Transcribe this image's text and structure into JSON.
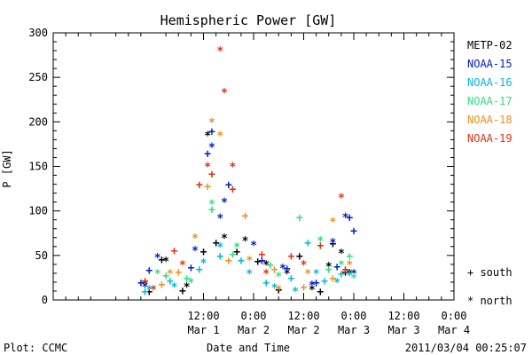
{
  "chart_data": {
    "type": "scatter",
    "title": "Hemispheric Power [GW]",
    "ylabel": "P [GW]",
    "xlabel": "Date and Time",
    "ylim": [
      0,
      300
    ],
    "y_ticks": [
      0,
      50,
      100,
      150,
      200,
      250,
      300
    ],
    "xlim": [
      "2011-02-28T00:00",
      "2011-03-04T00:00"
    ],
    "x_ticks": [
      {
        "x": "2011-03-01T12:00",
        "label": "12:00",
        "sublabel": "Mar 1"
      },
      {
        "x": "2011-03-02T00:00",
        "label": "0:00",
        "sublabel": "Mar 2"
      },
      {
        "x": "2011-03-02T12:00",
        "label": "12:00",
        "sublabel": "Mar 2"
      },
      {
        "x": "2011-03-03T00:00",
        "label": "0:00",
        "sublabel": "Mar 3"
      },
      {
        "x": "2011-03-03T12:00",
        "label": "12:00",
        "sublabel": "Mar 3"
      },
      {
        "x": "2011-03-04T00:00",
        "label": "0:00",
        "sublabel": "Mar 4"
      }
    ],
    "legend_position": "right",
    "series": [
      {
        "name": "METP-02",
        "color": "#000000",
        "south": [
          [
            "2011-02-28T23:00",
            10
          ],
          [
            "2011-03-01T02:00",
            46
          ],
          [
            "2011-03-01T07:00",
            11
          ],
          [
            "2011-03-01T12:00",
            55
          ],
          [
            "2011-03-01T15:00",
            65
          ],
          [
            "2011-03-01T20:00",
            55
          ],
          [
            "2011-03-02T01:00",
            44
          ],
          [
            "2011-03-02T06:00",
            12
          ],
          [
            "2011-03-02T11:00",
            50
          ],
          [
            "2011-03-02T16:00",
            10
          ],
          [
            "2011-03-02T19:00",
            64
          ],
          [
            "2011-03-02T22:00",
            32
          ]
        ],
        "north": [
          [
            "2011-02-28T22:00",
            18
          ],
          [
            "2011-03-01T03:00",
            44
          ],
          [
            "2011-03-01T08:00",
            15
          ],
          [
            "2011-03-01T13:00",
            185
          ],
          [
            "2011-03-01T17:00",
            70
          ],
          [
            "2011-03-01T22:00",
            67
          ],
          [
            "2011-03-02T03:00",
            40
          ],
          [
            "2011-03-02T08:00",
            30
          ],
          [
            "2011-03-02T14:00",
            12
          ],
          [
            "2011-03-02T18:00",
            38
          ],
          [
            "2011-03-02T21:00",
            53
          ],
          [
            "2011-03-02T23:00",
            30
          ]
        ]
      },
      {
        "name": "NOAA-15",
        "color": "#0020c0",
        "south": [
          [
            "2011-02-28T21:00",
            20
          ],
          [
            "2011-02-28T23:00",
            34
          ],
          [
            "2011-03-01T09:00",
            37
          ],
          [
            "2011-03-01T13:00",
            165
          ],
          [
            "2011-03-01T14:00",
            190
          ],
          [
            "2011-03-01T18:00",
            130
          ],
          [
            "2011-03-02T02:00",
            45
          ],
          [
            "2011-03-02T08:00",
            36
          ],
          [
            "2011-03-02T15:00",
            20
          ],
          [
            "2011-03-02T20:00",
            38
          ],
          [
            "2011-03-02T23:00",
            93
          ],
          [
            "2011-03-03T00:00",
            78
          ]
        ],
        "north": [
          [
            "2011-02-28T22:00",
            15
          ],
          [
            "2011-03-01T01:00",
            48
          ],
          [
            "2011-03-01T10:00",
            56
          ],
          [
            "2011-03-01T14:00",
            172
          ],
          [
            "2011-03-01T16:00",
            92
          ],
          [
            "2011-03-01T17:00",
            110
          ],
          [
            "2011-03-02T00:00",
            62
          ],
          [
            "2011-03-02T07:00",
            36
          ],
          [
            "2011-03-02T14:00",
            17
          ],
          [
            "2011-03-02T19:00",
            65
          ],
          [
            "2011-03-02T22:00",
            93
          ],
          [
            "2011-03-03T00:00",
            30
          ]
        ]
      },
      {
        "name": "NOAA-16",
        "color": "#00b8e0",
        "south": [
          [
            "2011-02-28T22:00",
            10
          ],
          [
            "2011-03-01T04:00",
            22
          ],
          [
            "2011-03-01T11:00",
            35
          ],
          [
            "2011-03-01T16:00",
            50
          ],
          [
            "2011-03-01T21:00",
            45
          ],
          [
            "2011-03-02T03:00",
            20
          ],
          [
            "2011-03-02T09:00",
            25
          ],
          [
            "2011-03-02T13:00",
            65
          ],
          [
            "2011-03-02T17:00",
            22
          ],
          [
            "2011-03-02T21:00",
            30
          ]
        ],
        "north": [
          [
            "2011-02-28T23:00",
            12
          ],
          [
            "2011-03-01T05:00",
            15
          ],
          [
            "2011-03-01T12:00",
            42
          ],
          [
            "2011-03-01T16:00",
            60
          ],
          [
            "2011-03-01T23:00",
            30
          ],
          [
            "2011-03-02T05:00",
            14
          ],
          [
            "2011-03-02T10:00",
            10
          ],
          [
            "2011-03-02T15:00",
            30
          ],
          [
            "2011-03-02T20:00",
            20
          ],
          [
            "2011-03-02T23:00",
            28
          ]
        ]
      },
      {
        "name": "NOAA-17",
        "color": "#30e080",
        "south": [
          [
            "2011-03-01T03:00",
            28
          ],
          [
            "2011-03-01T08:00",
            25
          ],
          [
            "2011-03-01T14:00",
            102
          ],
          [
            "2011-03-01T19:00",
            52
          ],
          [
            "2011-03-02T04:00",
            40
          ],
          [
            "2011-03-02T11:00",
            93
          ],
          [
            "2011-03-02T18:00",
            35
          ],
          [
            "2011-03-02T23:00",
            50
          ]
        ],
        "north": [
          [
            "2011-03-01T01:00",
            30
          ],
          [
            "2011-03-01T09:00",
            20
          ],
          [
            "2011-03-01T14:00",
            108
          ],
          [
            "2011-03-01T20:00",
            60
          ],
          [
            "2011-03-02T06:00",
            27
          ],
          [
            "2011-03-02T16:00",
            67
          ],
          [
            "2011-03-02T21:00",
            40
          ],
          [
            "2011-03-03T00:00",
            25
          ]
        ]
      },
      {
        "name": "NOAA-18",
        "color": "#f09020",
        "south": [
          [
            "2011-03-01T02:00",
            18
          ],
          [
            "2011-03-01T06:00",
            32
          ],
          [
            "2011-03-01T13:00",
            128
          ],
          [
            "2011-03-01T18:00",
            45
          ],
          [
            "2011-03-01T22:00",
            95
          ],
          [
            "2011-03-02T05:00",
            35
          ],
          [
            "2011-03-02T12:00",
            15
          ],
          [
            "2011-03-02T19:00",
            25
          ],
          [
            "2011-03-02T22:00",
            35
          ]
        ],
        "north": [
          [
            "2011-03-01T04:00",
            30
          ],
          [
            "2011-03-01T10:00",
            70
          ],
          [
            "2011-03-01T14:00",
            200
          ],
          [
            "2011-03-01T16:00",
            185
          ],
          [
            "2011-03-01T23:00",
            45
          ],
          [
            "2011-03-02T06:00",
            12
          ],
          [
            "2011-03-02T13:00",
            30
          ],
          [
            "2011-03-02T19:00",
            88
          ],
          [
            "2011-03-02T23:00",
            40
          ]
        ]
      },
      {
        "name": "NOAA-19",
        "color": "#e03010",
        "south": [
          [
            "2011-02-28T22:00",
            22
          ],
          [
            "2011-03-01T05:00",
            56
          ],
          [
            "2011-03-01T11:00",
            130
          ],
          [
            "2011-03-01T14:00",
            142
          ],
          [
            "2011-03-01T19:00",
            125
          ],
          [
            "2011-03-02T02:00",
            52
          ],
          [
            "2011-03-02T09:00",
            50
          ],
          [
            "2011-03-02T16:00",
            62
          ],
          [
            "2011-03-02T22:00",
            35
          ]
        ],
        "north": [
          [
            "2011-03-01T00:00",
            12
          ],
          [
            "2011-03-01T07:00",
            40
          ],
          [
            "2011-03-01T13:00",
            150
          ],
          [
            "2011-03-01T16:00",
            280
          ],
          [
            "2011-03-01T17:00",
            233
          ],
          [
            "2011-03-01T19:00",
            150
          ],
          [
            "2011-03-02T03:00",
            30
          ],
          [
            "2011-03-02T12:00",
            40
          ],
          [
            "2011-03-02T21:00",
            115
          ]
        ]
      }
    ],
    "marker_key": {
      "south": {
        "symbol": "+",
        "label": "south"
      },
      "north": {
        "symbol": "*",
        "label": "north"
      }
    }
  },
  "footer": {
    "left": "Plot: CCMC",
    "right": "2011/03/04 00:25:07"
  }
}
